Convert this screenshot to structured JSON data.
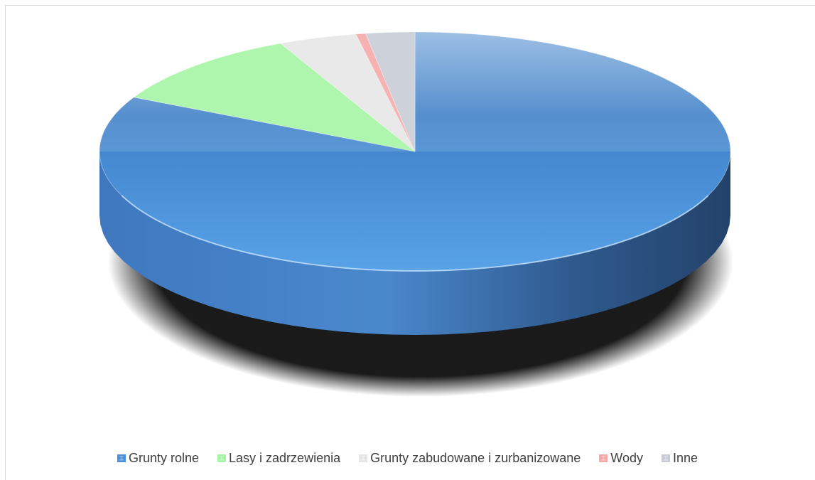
{
  "chart_data": {
    "type": "pie",
    "style": "3d",
    "title": "",
    "categories": [
      "Grunty rolne",
      "Lasy i zadrzewienia",
      "Grunty zabudowane i zurbanizowane",
      "Wody",
      "Inne"
    ],
    "values": [
      82.5,
      10.5,
      4.0,
      0.5,
      2.5
    ],
    "value_unit": "%",
    "colors": [
      "#4a90d9",
      "#a3f5a3",
      "#e6e6e6",
      "#f5a8a8",
      "#c7cbd4"
    ],
    "legend_position": "bottom"
  }
}
